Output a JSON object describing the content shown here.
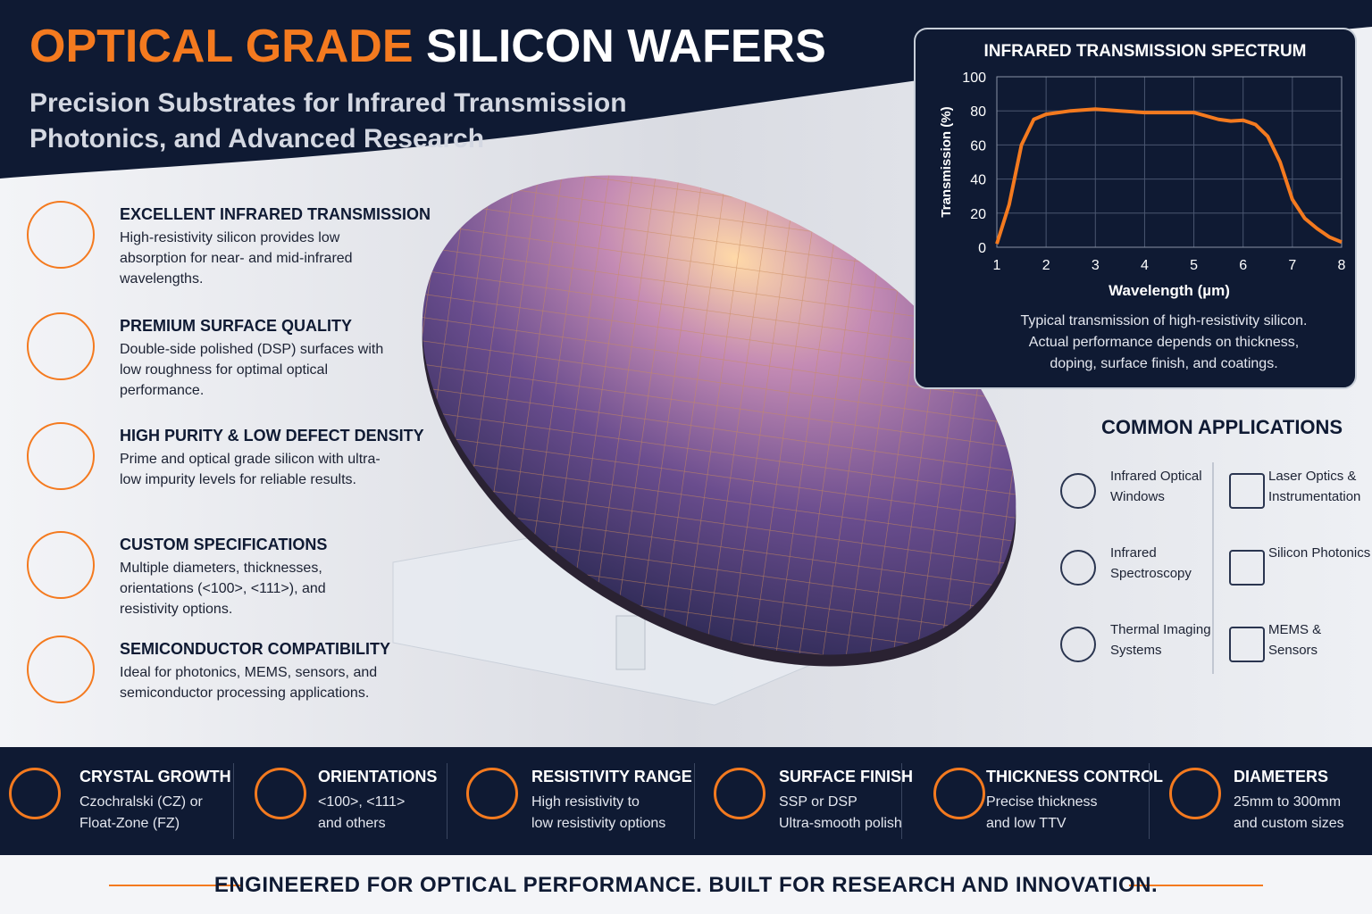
{
  "header": {
    "title_highlight": "OPTICAL GRADE",
    "title_rest": "SILICON WAFERS",
    "subtitle_line1": "Precision Substrates for Infrared Transmission",
    "subtitle_line2": "Photonics, and Advanced Research"
  },
  "features": [
    {
      "title": "EXCELLENT INFRARED TRANSMISSION",
      "text": "High-resistivity silicon provides low absorption for near- and mid-infrared wavelengths."
    },
    {
      "title": "PREMIUM SURFACE QUALITY",
      "text": "Double-side polished (DSP) surfaces with low roughness for optimal optical performance."
    },
    {
      "title": "HIGH PURITY & LOW DEFECT DENSITY",
      "text": "Prime and optical grade silicon with ultra-low impurity levels for reliable results."
    },
    {
      "title": "CUSTOM SPECIFICATIONS",
      "text": "Multiple diameters, thicknesses, orientations (<100>, <111>), and resistivity options."
    },
    {
      "title": "SEMICONDUCTOR COMPATIBILITY",
      "text": "Ideal for photonics, MEMS, sensors, and semiconductor processing applications."
    }
  ],
  "chart_data": {
    "type": "line",
    "title": "INFRARED TRANSMISSION SPECTRUM",
    "x_label": "Wavelength (µm)",
    "y_label": "Transmission (%)",
    "x": [
      1,
      1.25,
      1.5,
      1.75,
      2,
      2.5,
      3,
      3.5,
      4,
      4.5,
      5,
      5.5,
      5.75,
      6,
      6.25,
      6.5,
      6.75,
      7,
      7.25,
      7.5,
      7.75,
      8
    ],
    "values": [
      2,
      25,
      60,
      75,
      78,
      80,
      81,
      80,
      79,
      79,
      79,
      75,
      74,
      74.5,
      72,
      65,
      50,
      28,
      17,
      11,
      6,
      3
    ],
    "color": "#f47a1f",
    "xlim": [
      1,
      8
    ],
    "xticks": [
      1,
      2,
      3,
      4,
      5,
      6,
      7,
      8
    ],
    "ylim": [
      0,
      100
    ],
    "yticks": [
      0,
      20,
      40,
      60,
      80,
      100
    ],
    "grid": true,
    "caption": [
      "Typical transmission of high-resistivity silicon.",
      "Actual performance depends on thickness,",
      "doping, surface finish, and coatings."
    ]
  },
  "applications": {
    "title": "COMMON APPLICATIONS",
    "items": [
      [
        "Infrared Optical",
        "Windows"
      ],
      [
        "Laser Optics &",
        "Instrumentation"
      ],
      [
        "Infrared",
        "Spectroscopy"
      ],
      [
        "Silicon Photonics"
      ],
      [
        "Thermal Imaging",
        "Systems"
      ],
      [
        "MEMS &",
        "Sensors"
      ]
    ]
  },
  "specs": [
    {
      "title": "CRYSTAL GROWTH",
      "lines": [
        "Czochralski (CZ) or",
        "Float-Zone (FZ)"
      ]
    },
    {
      "title": "ORIENTATIONS",
      "lines": [
        "<100>, <111>",
        "and others"
      ]
    },
    {
      "title": "RESISTIVITY RANGE",
      "lines": [
        "High resistivity to",
        "low resistivity options"
      ]
    },
    {
      "title": "SURFACE FINISH",
      "lines": [
        "SSP or DSP",
        "Ultra-smooth polish"
      ]
    },
    {
      "title": "THICKNESS CONTROL",
      "lines": [
        "Precise thickness",
        "and low TTV"
      ]
    },
    {
      "title": "DIAMETERS",
      "lines": [
        "25mm to 300mm",
        "and custom sizes"
      ]
    }
  ],
  "footer": "ENGINEERED FOR OPTICAL PERFORMANCE. BUILT FOR RESEARCH AND INNOVATION."
}
